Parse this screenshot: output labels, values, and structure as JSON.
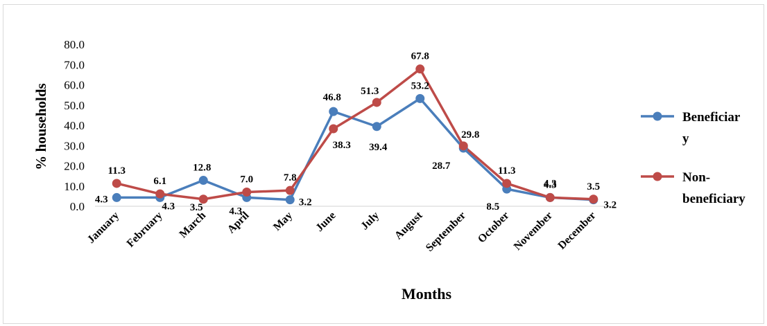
{
  "chart_data": {
    "type": "line",
    "title": "",
    "xlabel": "Months",
    "ylabel": "% households",
    "ylim": [
      0,
      80
    ],
    "yticks": [
      "0.0",
      "10.0",
      "20.0",
      "30.0",
      "40.0",
      "50.0",
      "60.0",
      "70.0",
      "80.0"
    ],
    "grid": false,
    "legend_position": "right",
    "categories": [
      "January",
      "February",
      "March",
      "April",
      "May",
      "June",
      "July",
      "August",
      "September",
      "October",
      "November",
      "December"
    ],
    "series": [
      {
        "name": "Beneficiary",
        "legend_lines": [
          "Beneficiar",
          "y"
        ],
        "color": "#4a7ebb",
        "values": [
          4.3,
          4.3,
          12.8,
          4.3,
          3.2,
          46.8,
          39.4,
          53.2,
          28.7,
          8.5,
          4.3,
          3.2
        ],
        "labels": [
          "4.3",
          "4.3",
          "12.8",
          "4.3",
          "3.2",
          "46.8",
          "39.4",
          "53.2",
          "28.7",
          "8.5",
          "4.3",
          "3.2"
        ]
      },
      {
        "name": "Non-beneficiary",
        "legend_lines": [
          "Non-",
          "beneficiary"
        ],
        "color": "#be4b48",
        "values": [
          11.3,
          6.1,
          3.5,
          7.0,
          7.8,
          38.3,
          51.3,
          67.8,
          29.8,
          11.3,
          4.3,
          3.5
        ],
        "labels": [
          "11.3",
          "6.1",
          "3.5",
          "7.0",
          "7.8",
          "38.3",
          "51.3",
          "67.8",
          "29.8",
          "11.3",
          "4.3",
          "3.5"
        ]
      }
    ]
  }
}
